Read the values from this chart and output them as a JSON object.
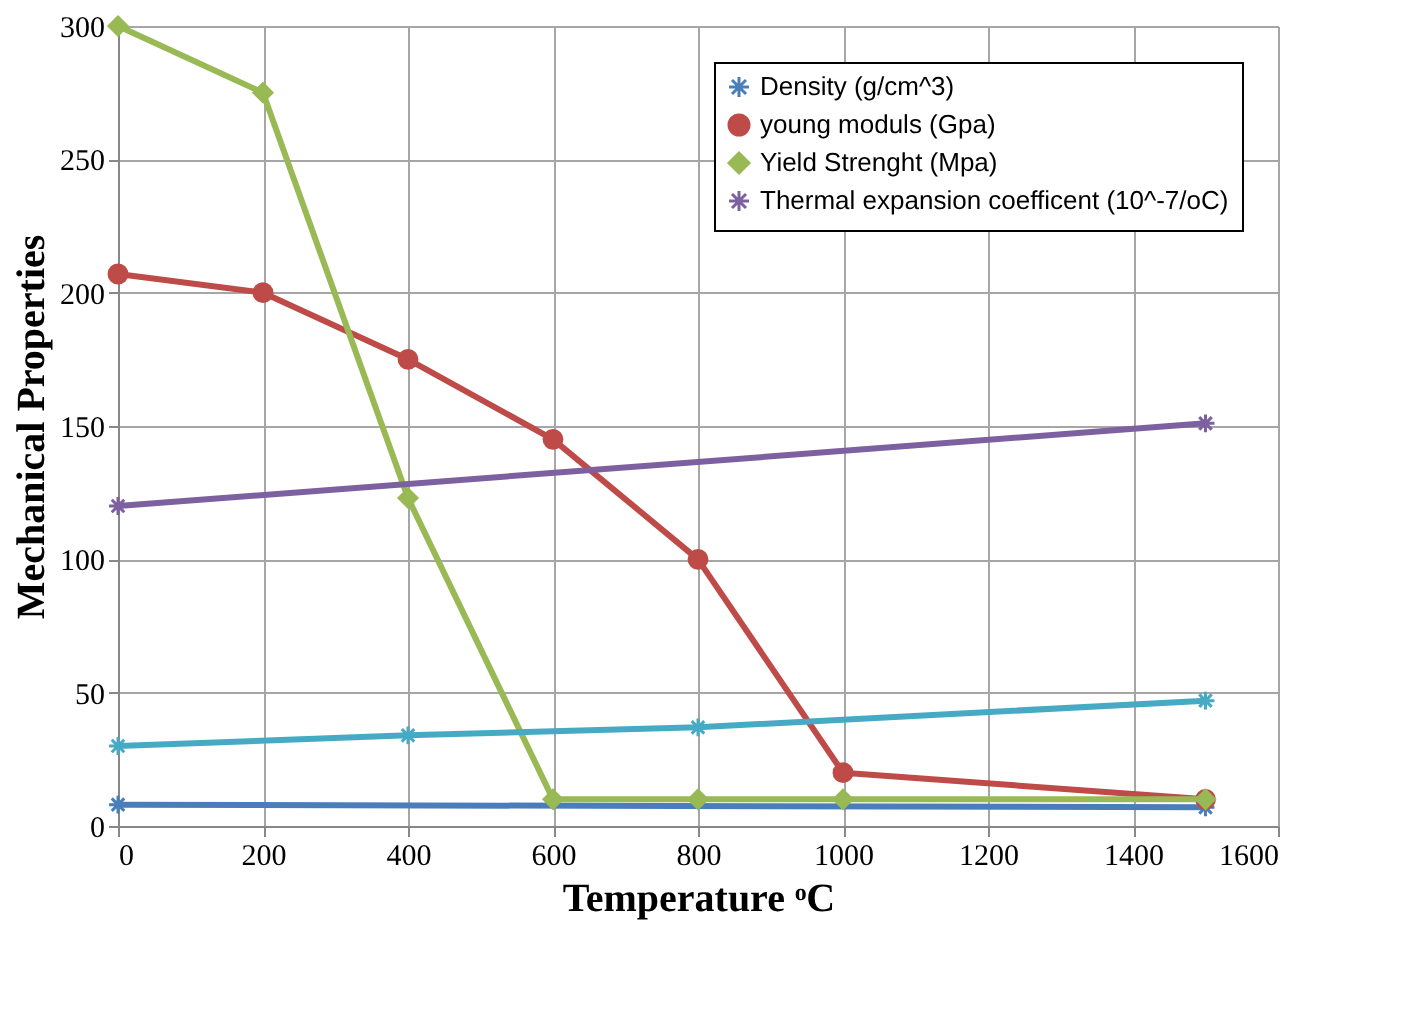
{
  "chart_data": {
    "type": "line",
    "xlabel": "Temperature ᵒC",
    "ylabel": "Mechanical Properties",
    "xlim": [
      0,
      1600
    ],
    "xticks": [
      0,
      200,
      400,
      600,
      800,
      1000,
      1200,
      1400,
      1600
    ],
    "ylim": [
      0,
      300
    ],
    "yticks": [
      0,
      50,
      100,
      150,
      200,
      250,
      300
    ],
    "grid": true,
    "legend": "top right",
    "line_style": "solid",
    "series": [
      {
        "name": "Density (g/cm^3)",
        "color": "#4a7ebb",
        "marker": "cross",
        "x": [
          0,
          1500
        ],
        "values": [
          8,
          7
        ]
      },
      {
        "name": "young moduls (Gpa)",
        "color": "#be4b48",
        "marker": "circle",
        "x": [
          0,
          200,
          400,
          600,
          800,
          1000,
          1500
        ],
        "values": [
          207,
          200,
          175,
          145,
          100,
          20,
          10
        ]
      },
      {
        "name": "Yield Strenght (Mpa)",
        "color": "#98b954",
        "marker": "diamond",
        "x": [
          0,
          200,
          400,
          600,
          800,
          1000,
          1500
        ],
        "values": [
          300,
          275,
          123,
          10,
          10,
          10,
          10
        ]
      },
      {
        "name": "Thermal expansion coefficent (10^-7/oC)",
        "color": "#7d60a0",
        "marker": "cross",
        "x": [
          0,
          1500
        ],
        "values": [
          120,
          151
        ]
      },
      {
        "color": "#46aac5",
        "marker": "cross",
        "x": [
          0,
          400,
          800,
          1500
        ],
        "values": [
          30,
          34,
          37,
          47
        ]
      }
    ]
  }
}
